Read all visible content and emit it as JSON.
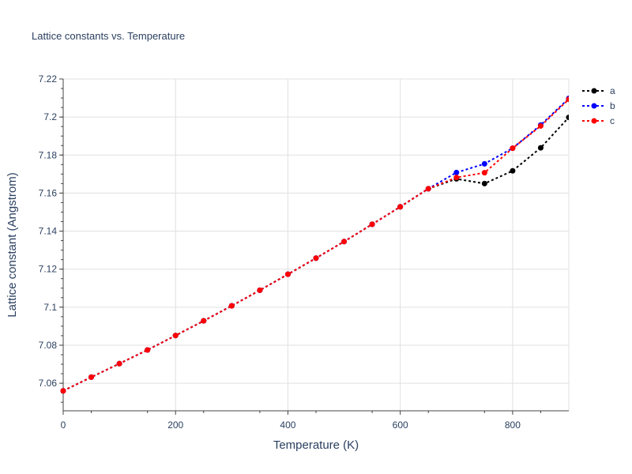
{
  "chart_data": {
    "type": "line",
    "title": "Lattice constants vs. Temperature",
    "xlabel": "Temperature (K)",
    "ylabel": "Lattice constant (Angstrom)",
    "xlim": [
      0,
      900
    ],
    "ylim": [
      7.0455,
      7.22
    ],
    "x_ticks": [
      0,
      200,
      400,
      600,
      800
    ],
    "x_tick_labels": [
      "0",
      "200",
      "400",
      "600",
      "800"
    ],
    "y_ticks": [
      7.06,
      7.08,
      7.1,
      7.12,
      7.14,
      7.16,
      7.18,
      7.2,
      7.22
    ],
    "y_tick_labels": [
      "7.06",
      "7.08",
      "7.1",
      "7.12",
      "7.14",
      "7.16",
      "7.18",
      "7.2",
      "7.22"
    ],
    "legend_position": "top-right",
    "x": [
      0,
      50,
      100,
      150,
      200,
      250,
      300,
      350,
      400,
      450,
      500,
      550,
      600,
      650,
      700,
      750,
      800,
      850,
      900
    ],
    "series": [
      {
        "name": "a",
        "color": "#000000",
        "values": [
          7.056,
          7.0632,
          7.0703,
          7.0775,
          7.0851,
          7.0928,
          7.1007,
          7.1089,
          7.1173,
          7.1258,
          7.1345,
          7.1436,
          7.1528,
          7.1623,
          7.1675,
          7.165,
          7.1717,
          7.1838,
          7.1998
        ]
      },
      {
        "name": "b",
        "color": "#0000ff",
        "values": [
          7.056,
          7.0632,
          7.0703,
          7.0775,
          7.0851,
          7.0928,
          7.1007,
          7.1089,
          7.1173,
          7.1258,
          7.1345,
          7.1436,
          7.1528,
          7.1623,
          7.1708,
          7.1754,
          7.1836,
          7.1958,
          7.2098
        ]
      },
      {
        "name": "c",
        "color": "#ff0000",
        "values": [
          7.056,
          7.0632,
          7.0703,
          7.0775,
          7.0851,
          7.0928,
          7.1007,
          7.1089,
          7.1173,
          7.1258,
          7.1345,
          7.1436,
          7.1528,
          7.1623,
          7.1682,
          7.1707,
          7.1836,
          7.1953,
          7.2093
        ]
      }
    ]
  }
}
